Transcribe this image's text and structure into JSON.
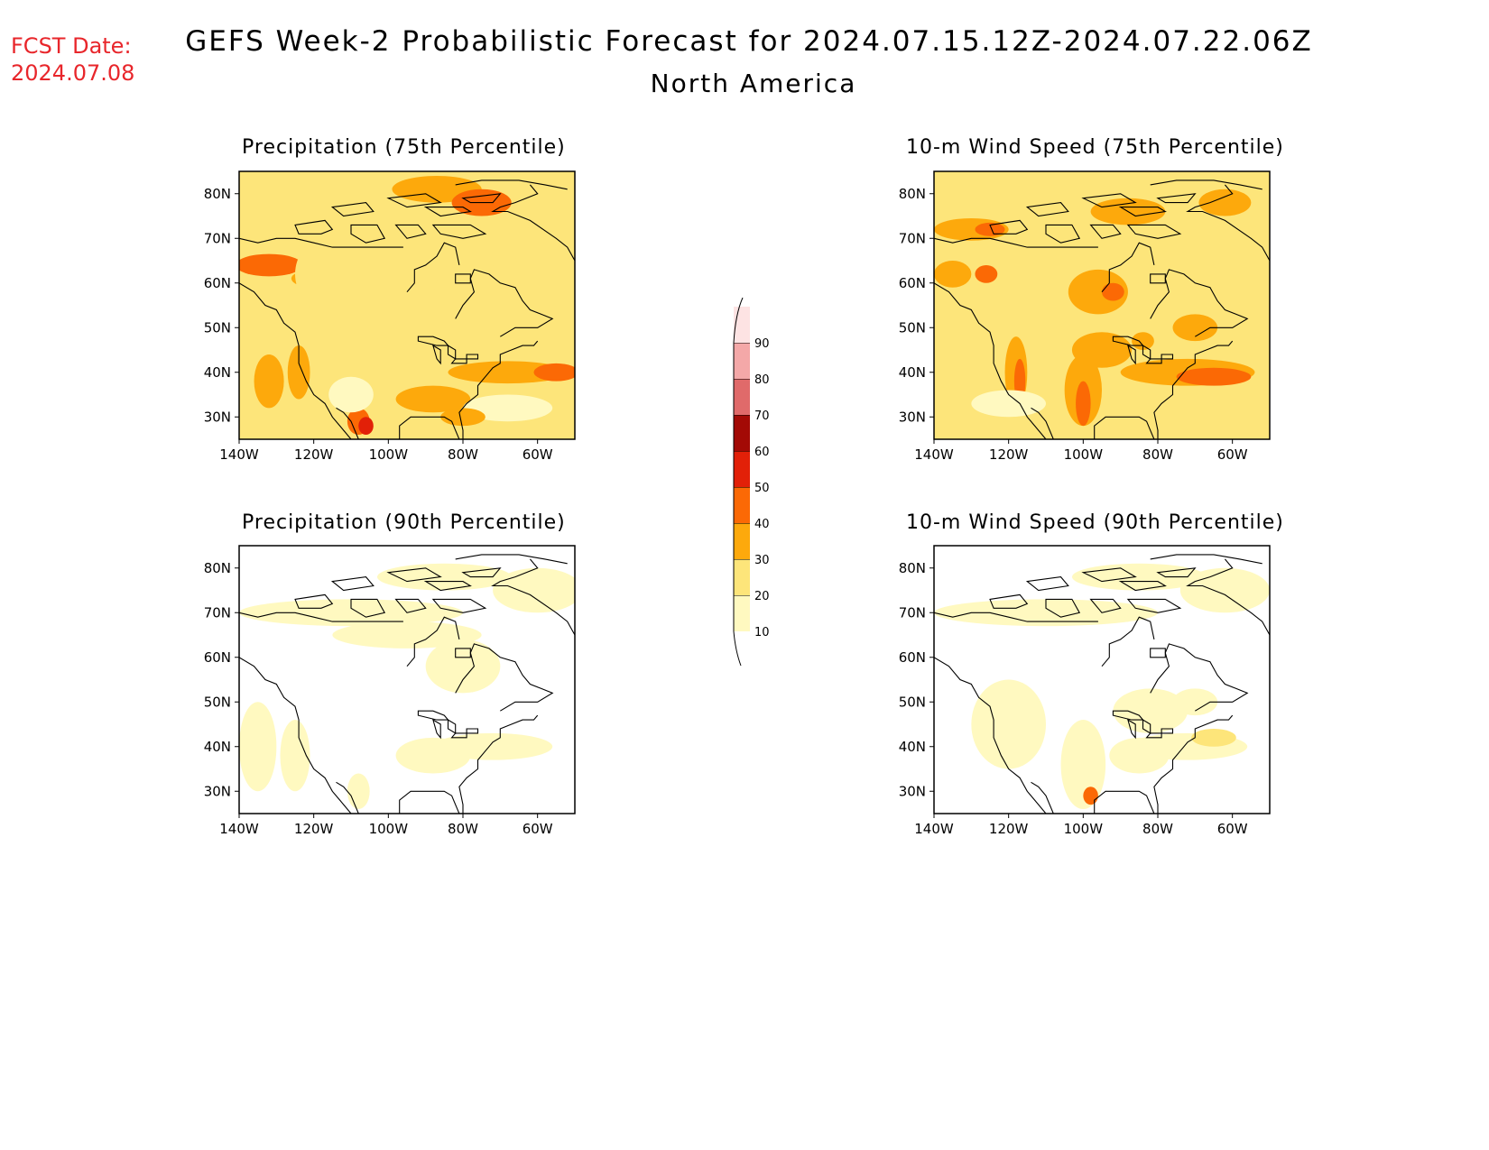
{
  "header": {
    "fcst_label": "FCST Date:",
    "fcst_date": "2024.07.08",
    "title": "GEFS Week-2 Probabilistic Forecast for 2024.07.15.12Z-2024.07.22.06Z",
    "region": "North America"
  },
  "axes": {
    "lon_labels": [
      "140W",
      "120W",
      "100W",
      "80W",
      "60W"
    ],
    "lat_labels": [
      "30N",
      "40N",
      "50N",
      "60N",
      "70N",
      "80N"
    ]
  },
  "panels": [
    {
      "title": "Precipitation (75th Percentile)"
    },
    {
      "title": "10-m Wind Speed (75th Percentile)"
    },
    {
      "title": "Precipitation (90th Percentile)"
    },
    {
      "title": "10-m Wind Speed (90th Percentile)"
    }
  ],
  "colorbar": {
    "labels": [
      "10",
      "20",
      "30",
      "40",
      "50",
      "60",
      "70",
      "80",
      "90"
    ],
    "colors": [
      "#fff9c0",
      "#fde57a",
      "#fda90c",
      "#fb6905",
      "#e22008",
      "#a30a05",
      "#e06a6a",
      "#f4a8a8",
      "#fde3e3"
    ]
  }
}
